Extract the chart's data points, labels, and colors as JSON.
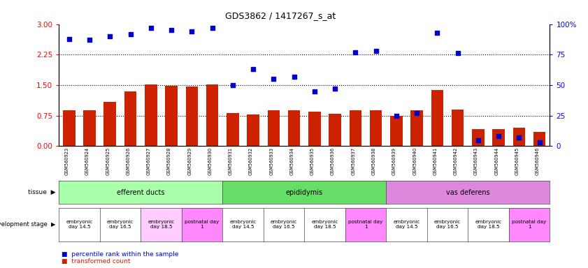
{
  "title": "GDS3862 / 1417267_s_at",
  "samples": [
    "GSM560923",
    "GSM560924",
    "GSM560925",
    "GSM560926",
    "GSM560927",
    "GSM560928",
    "GSM560929",
    "GSM560930",
    "GSM560931",
    "GSM560932",
    "GSM560933",
    "GSM560934",
    "GSM560935",
    "GSM560936",
    "GSM560937",
    "GSM560938",
    "GSM560939",
    "GSM560940",
    "GSM560941",
    "GSM560942",
    "GSM560943",
    "GSM560944",
    "GSM560945",
    "GSM560946"
  ],
  "transformed_count": [
    0.88,
    0.88,
    1.08,
    1.35,
    1.52,
    1.48,
    1.47,
    1.52,
    0.82,
    0.78,
    0.88,
    0.88,
    0.85,
    0.8,
    0.88,
    0.88,
    0.75,
    0.88,
    1.38,
    0.9,
    0.42,
    0.42,
    0.45,
    0.35
  ],
  "percentile_rank": [
    88,
    87,
    90,
    92,
    97,
    95,
    94,
    97,
    50,
    63,
    55,
    57,
    45,
    47,
    77,
    78,
    25,
    27,
    93,
    76,
    5,
    8,
    7,
    3
  ],
  "bar_color": "#cc2200",
  "dot_color": "#0000cc",
  "ylim_left": [
    0,
    3
  ],
  "ylim_right": [
    0,
    100
  ],
  "yticks_left": [
    0,
    0.75,
    1.5,
    2.25,
    3.0
  ],
  "yticks_right": [
    0,
    25,
    50,
    75,
    100
  ],
  "tissue_groups": [
    {
      "label": "efferent ducts",
      "start": 0,
      "end": 8,
      "color": "#aaffaa"
    },
    {
      "label": "epididymis",
      "start": 8,
      "end": 16,
      "color": "#66dd66"
    },
    {
      "label": "vas deferens",
      "start": 16,
      "end": 24,
      "color": "#dd88dd"
    }
  ],
  "dev_stage_groups": [
    {
      "label": "embryonic\nday 14.5",
      "start": 0,
      "end": 2,
      "color": "#ffffff"
    },
    {
      "label": "embryonic\nday 16.5",
      "start": 2,
      "end": 4,
      "color": "#ffffff"
    },
    {
      "label": "embryonic\nday 18.5",
      "start": 4,
      "end": 6,
      "color": "#ffccff"
    },
    {
      "label": "postnatal day\n1",
      "start": 6,
      "end": 8,
      "color": "#ff88ff"
    },
    {
      "label": "embryonic\nday 14.5",
      "start": 8,
      "end": 10,
      "color": "#ffffff"
    },
    {
      "label": "embryonic\nday 16.5",
      "start": 10,
      "end": 12,
      "color": "#ffffff"
    },
    {
      "label": "embryonic\nday 18.5",
      "start": 12,
      "end": 14,
      "color": "#ffffff"
    },
    {
      "label": "postnatal day\n1",
      "start": 14,
      "end": 16,
      "color": "#ff88ff"
    },
    {
      "label": "embryonic\nday 14.5",
      "start": 16,
      "end": 18,
      "color": "#ffffff"
    },
    {
      "label": "embryonic\nday 16.5",
      "start": 18,
      "end": 20,
      "color": "#ffffff"
    },
    {
      "label": "embryonic\nday 18.5",
      "start": 20,
      "end": 22,
      "color": "#ffffff"
    },
    {
      "label": "postnatal day\n1",
      "start": 22,
      "end": 24,
      "color": "#ff88ff"
    }
  ],
  "legend_bar_label": "transformed count",
  "legend_dot_label": "percentile rank within the sample",
  "background_color": "#ffffff"
}
